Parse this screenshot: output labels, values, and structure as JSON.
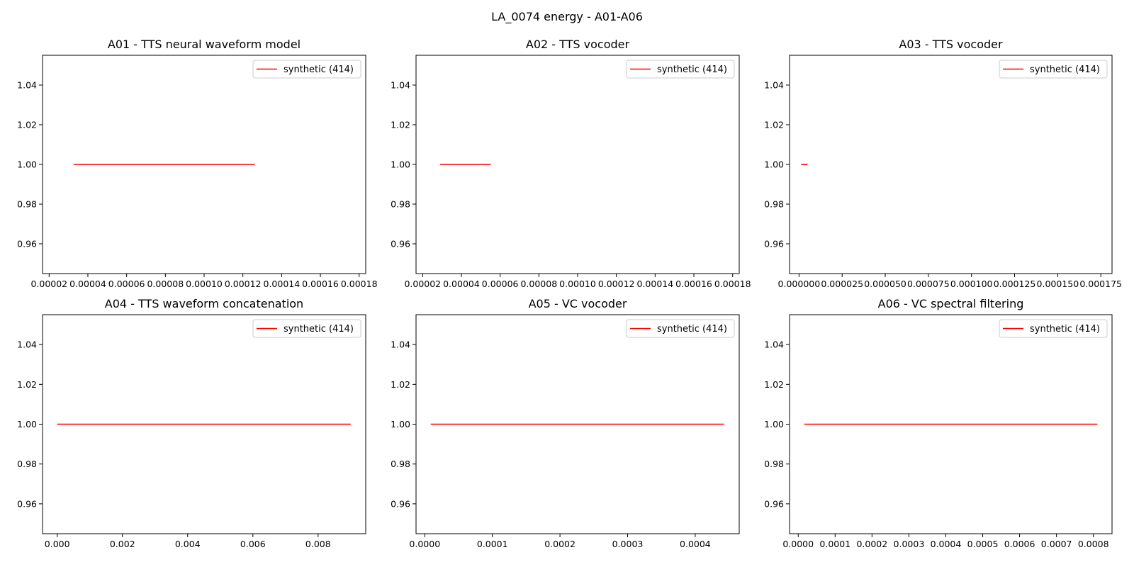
{
  "suptitle": "LA_0074 energy - A01-A06",
  "colors": {
    "series": "#ff0000",
    "axes": "#000000",
    "legend_border": "#cccccc",
    "background": "#ffffff"
  },
  "chart_data": [
    {
      "type": "line",
      "title": "A01 - TTS neural waveform model",
      "xlabel": "",
      "ylabel": "",
      "xlim": [
        1.66e-05,
        0.0001834
      ],
      "ylim": [
        0.945,
        1.055
      ],
      "xticks": [
        2e-05,
        4e-05,
        6e-05,
        8e-05,
        0.0001,
        0.00012,
        0.00014,
        0.00016,
        0.00018
      ],
      "xtick_labels": [
        "0.00002",
        "0.00004",
        "0.00006",
        "0.00008",
        "0.00010",
        "0.00012",
        "0.00014",
        "0.00016",
        "0.00018"
      ],
      "yticks": [
        0.96,
        0.98,
        1.0,
        1.02,
        1.04
      ],
      "ytick_labels": [
        "0.96",
        "0.98",
        "1.00",
        "1.02",
        "1.04"
      ],
      "legend": {
        "position": "upper right"
      },
      "series": [
        {
          "name": "synthetic (414)",
          "x": [
            3.26e-05,
            0.0001262
          ],
          "y": [
            1.0,
            1.0
          ]
        }
      ]
    },
    {
      "type": "line",
      "title": "A02 - TTS vocoder",
      "xlabel": "",
      "ylabel": "",
      "xlim": [
        1.66e-05,
        0.0001834
      ],
      "ylim": [
        0.945,
        1.055
      ],
      "xticks": [
        2e-05,
        4e-05,
        6e-05,
        8e-05,
        0.0001,
        0.00012,
        0.00014,
        0.00016,
        0.00018
      ],
      "xtick_labels": [
        "0.00002",
        "0.00004",
        "0.00006",
        "0.00008",
        "0.00010",
        "0.00012",
        "0.00014",
        "0.00016",
        "0.00018"
      ],
      "yticks": [
        0.96,
        0.98,
        1.0,
        1.02,
        1.04
      ],
      "ytick_labels": [
        "0.96",
        "0.98",
        "1.00",
        "1.02",
        "1.04"
      ],
      "legend": {
        "position": "upper right"
      },
      "series": [
        {
          "name": "synthetic (414)",
          "x": [
            2.9e-05,
            5.52e-05
          ],
          "y": [
            1.0,
            1.0
          ]
        }
      ]
    },
    {
      "type": "line",
      "title": "A03 - TTS vocoder",
      "xlabel": "",
      "ylabel": "",
      "xlim": [
        -5.5e-06,
        0.0001815
      ],
      "ylim": [
        0.945,
        1.055
      ],
      "xticks": [
        0.0,
        2.5e-05,
        5e-05,
        7.5e-05,
        0.0001,
        0.000125,
        0.00015,
        0.000175
      ],
      "xtick_labels": [
        "0.000000",
        "0.000025",
        "0.000050",
        "0.000075",
        "0.000100",
        "0.000125",
        "0.000150",
        "0.000175"
      ],
      "yticks": [
        0.96,
        0.98,
        1.0,
        1.02,
        1.04
      ],
      "ytick_labels": [
        "0.96",
        "0.98",
        "1.00",
        "1.02",
        "1.04"
      ],
      "legend": {
        "position": "upper right"
      },
      "series": [
        {
          "name": "synthetic (414)",
          "x": [
            1.2e-06,
            5e-06
          ],
          "y": [
            1.0,
            1.0
          ]
        }
      ]
    },
    {
      "type": "line",
      "title": "A04 - TTS waveform concatenation",
      "xlabel": "",
      "ylabel": "",
      "xlim": [
        -0.00045,
        0.00946
      ],
      "ylim": [
        0.945,
        1.055
      ],
      "xticks": [
        0.0,
        0.002,
        0.004,
        0.006,
        0.008
      ],
      "xtick_labels": [
        "0.000",
        "0.002",
        "0.004",
        "0.006",
        "0.008"
      ],
      "yticks": [
        0.96,
        0.98,
        1.0,
        1.02,
        1.04
      ],
      "ytick_labels": [
        "0.96",
        "0.98",
        "1.00",
        "1.02",
        "1.04"
      ],
      "legend": {
        "position": "upper right"
      },
      "series": [
        {
          "name": "synthetic (414)",
          "x": [
            0.0,
            0.009
          ],
          "y": [
            1.0,
            1.0
          ]
        }
      ]
    },
    {
      "type": "line",
      "title": "A05 - VC vocoder",
      "xlabel": "",
      "ylabel": "",
      "xlim": [
        -1.29e-05,
        0.0004651
      ],
      "ylim": [
        0.945,
        1.055
      ],
      "xticks": [
        0.0,
        0.0001,
        0.0002,
        0.0003,
        0.0004
      ],
      "xtick_labels": [
        "0.0000",
        "0.0001",
        "0.0002",
        "0.0003",
        "0.0004"
      ],
      "yticks": [
        0.96,
        0.98,
        1.0,
        1.02,
        1.04
      ],
      "ytick_labels": [
        "0.96",
        "0.98",
        "1.00",
        "1.02",
        "1.04"
      ],
      "legend": {
        "position": "upper right"
      },
      "series": [
        {
          "name": "synthetic (414)",
          "x": [
            8.8e-06,
            0.0004425
          ],
          "y": [
            1.0,
            1.0
          ]
        }
      ]
    },
    {
      "type": "line",
      "title": "A06 - VC spectral filtering",
      "xlabel": "",
      "ylabel": "",
      "xlim": [
        -2.35e-05,
        0.0008505
      ],
      "ylim": [
        0.945,
        1.055
      ],
      "xticks": [
        0.0,
        0.0001,
        0.0002,
        0.0003,
        0.0004,
        0.0005,
        0.0006,
        0.0007,
        0.0008
      ],
      "xtick_labels": [
        "0.0000",
        "0.0001",
        "0.0002",
        "0.0003",
        "0.0004",
        "0.0005",
        "0.0006",
        "0.0007",
        "0.0008"
      ],
      "yticks": [
        0.96,
        0.98,
        1.0,
        1.02,
        1.04
      ],
      "ytick_labels": [
        "0.96",
        "0.98",
        "1.00",
        "1.02",
        "1.04"
      ],
      "legend": {
        "position": "upper right"
      },
      "series": [
        {
          "name": "synthetic (414)",
          "x": [
            1.63e-05,
            0.000811
          ],
          "y": [
            1.0,
            1.0
          ]
        }
      ]
    }
  ]
}
